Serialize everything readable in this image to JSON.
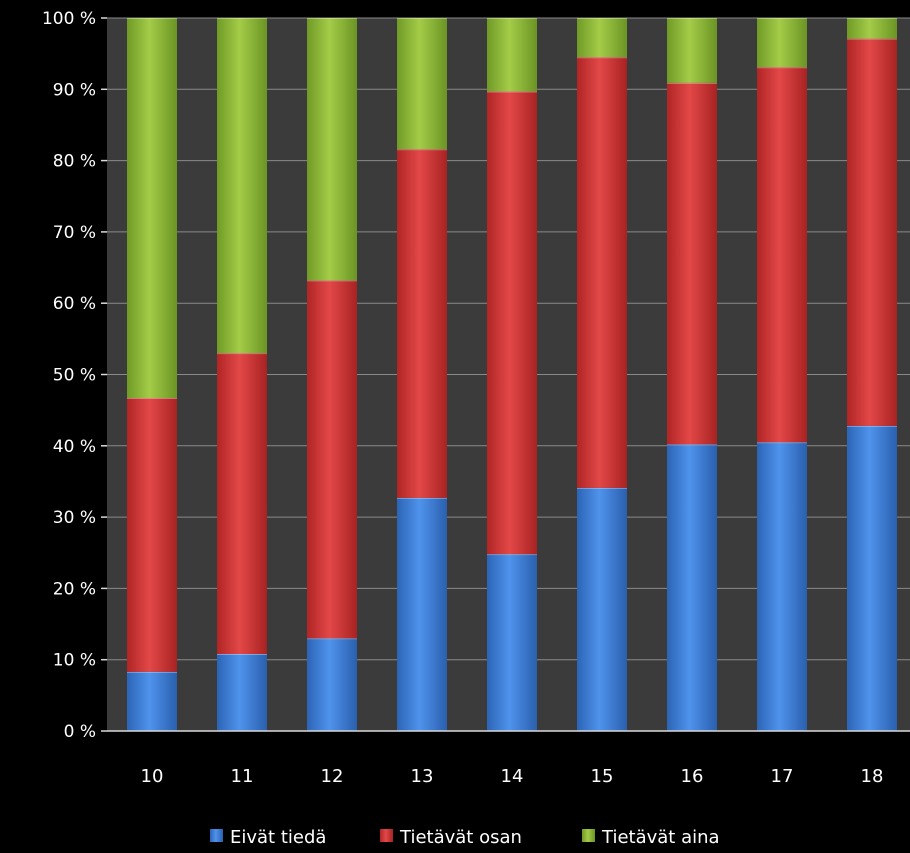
{
  "chart_data": {
    "type": "bar",
    "stacked": true,
    "percent": true,
    "categories": [
      "10",
      "11",
      "12",
      "13",
      "14",
      "15",
      "16",
      "17",
      "18"
    ],
    "series": [
      {
        "name": "Eivät tiedä",
        "color": "#3a7fd9",
        "values": [
          8.3,
          10.8,
          13.0,
          32.7,
          24.8,
          34.1,
          40.2,
          40.5,
          42.8
        ]
      },
      {
        "name": "Tietävät osan",
        "color": "#d63a3a",
        "values": [
          38.4,
          42.2,
          50.2,
          48.9,
          64.9,
          60.4,
          50.7,
          52.6,
          54.3
        ]
      },
      {
        "name": "Tietävät aina",
        "color": "#8db83a",
        "values": [
          53.3,
          47.0,
          36.8,
          18.4,
          10.3,
          5.5,
          9.1,
          6.9,
          2.9
        ]
      }
    ],
    "ylim": [
      0,
      100
    ],
    "yticks": [
      "0 %",
      "10 %",
      "20 %",
      "30 %",
      "40 %",
      "50 %",
      "60 %",
      "70 %",
      "80 %",
      "90 %",
      "100 %"
    ],
    "grid": true,
    "legend_position": "bottom",
    "colors": {
      "background": "#000000",
      "plot_background": "#3b3b3b",
      "gridline": "#8a8a8a",
      "text": "#ffffff"
    }
  }
}
